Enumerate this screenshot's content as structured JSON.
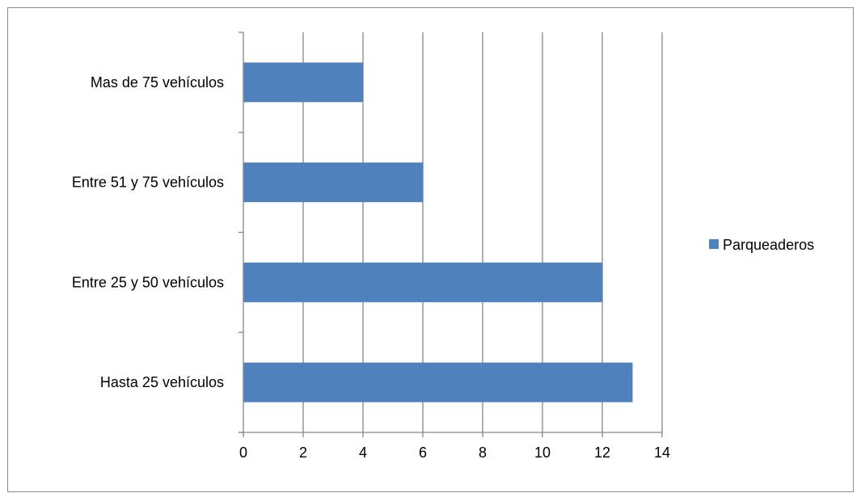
{
  "chart_data": {
    "type": "bar",
    "orientation": "horizontal",
    "categories": [
      "Hasta 25 vehículos",
      "Entre 25 y 50 vehículos",
      "Entre 51 y 75 vehículos",
      "Mas de 75 vehículos"
    ],
    "series": [
      {
        "name": "Parqueaderos",
        "values": [
          13,
          12,
          6,
          4
        ],
        "color": "#4f81bd"
      }
    ],
    "x_ticks": [
      "0",
      "2",
      "4",
      "6",
      "8",
      "10",
      "12",
      "14"
    ],
    "xlim": [
      0,
      14
    ],
    "grid": "vertical major gridlines on",
    "legend_position": "right",
    "title": "",
    "xlabel": "",
    "ylabel": ""
  },
  "colors": {
    "bar": "#4f81bd",
    "grid": "#868686",
    "frame": "#8c8c8c"
  }
}
